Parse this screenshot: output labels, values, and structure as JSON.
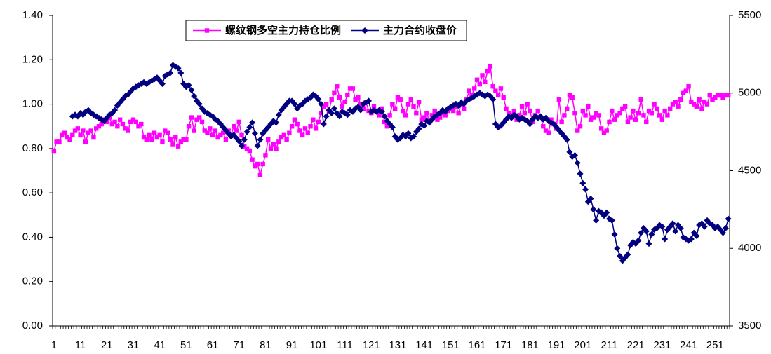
{
  "chart_data": {
    "type": "line",
    "categories": [
      "1",
      null,
      null,
      null,
      null,
      null,
      null,
      null,
      null,
      null,
      "11",
      null,
      null,
      null,
      null,
      null,
      null,
      null,
      null,
      null,
      "21",
      null,
      null,
      null,
      null,
      null,
      null,
      null,
      null,
      null,
      "31",
      null,
      null,
      null,
      null,
      null,
      null,
      null,
      null,
      null,
      "41",
      null,
      null,
      null,
      null,
      null,
      null,
      null,
      null,
      null,
      "51",
      null,
      null,
      null,
      null,
      null,
      null,
      null,
      null,
      null,
      "61",
      null,
      null,
      null,
      null,
      null,
      null,
      null,
      null,
      null,
      "71",
      null,
      null,
      null,
      null,
      null,
      null,
      null,
      null,
      null,
      "81",
      null,
      null,
      null,
      null,
      null,
      null,
      null,
      null,
      null,
      "91",
      null,
      null,
      null,
      null,
      null,
      null,
      null,
      null,
      null,
      "101",
      null,
      null,
      null,
      null,
      null,
      null,
      null,
      null,
      null,
      "111",
      null,
      null,
      null,
      null,
      null,
      null,
      null,
      null,
      null,
      "121",
      null,
      null,
      null,
      null,
      null,
      null,
      null,
      null,
      null,
      "131",
      null,
      null,
      null,
      null,
      null,
      null,
      null,
      null,
      null,
      "141",
      null,
      null,
      null,
      null,
      null,
      null,
      null,
      null,
      null,
      "151",
      null,
      null,
      null,
      null,
      null,
      null,
      null,
      null,
      null,
      "161",
      null,
      null,
      null,
      null,
      null,
      null,
      null,
      null,
      null,
      "171",
      null,
      null,
      null,
      null,
      null,
      null,
      null,
      null,
      null,
      "181",
      null,
      null,
      null,
      null,
      null,
      null,
      null,
      null,
      null,
      "191",
      null,
      null,
      null,
      null,
      null,
      null,
      null,
      null,
      null,
      "201",
      null,
      null,
      null,
      null,
      null,
      null,
      null,
      null,
      null,
      "211",
      null,
      null,
      null,
      null,
      null,
      null,
      null,
      null,
      null,
      "221",
      null,
      null,
      null,
      null,
      null,
      null,
      null,
      null,
      null,
      "231",
      null,
      null,
      null,
      null,
      null,
      null,
      null,
      null,
      null,
      "241",
      null,
      null,
      null,
      null,
      null,
      null,
      null,
      null,
      null,
      "251",
      null,
      null,
      null,
      null,
      null
    ],
    "series": [
      {
        "name": "螺纹钢多空主力持仓比例",
        "color": "#ff00ff",
        "marker": "square",
        "values": [
          0.79,
          0.83,
          0.83,
          0.86,
          0.87,
          0.85,
          0.84,
          0.86,
          0.88,
          0.89,
          0.86,
          0.88,
          0.83,
          0.87,
          0.88,
          0.85,
          0.89,
          0.9,
          0.91,
          0.93,
          0.92,
          0.94,
          0.91,
          0.92,
          0.9,
          0.93,
          0.91,
          0.89,
          0.88,
          0.92,
          0.93,
          0.92,
          0.9,
          0.91,
          0.85,
          0.84,
          0.86,
          0.84,
          0.87,
          0.85,
          0.86,
          0.83,
          0.88,
          0.87,
          0.84,
          0.82,
          0.85,
          0.81,
          0.83,
          0.84,
          0.84,
          0.9,
          0.94,
          0.88,
          0.93,
          0.94,
          0.92,
          0.88,
          0.87,
          0.89,
          0.86,
          0.88,
          0.85,
          0.86,
          0.87,
          0.84,
          0.88,
          0.86,
          0.9,
          0.88,
          0.92,
          0.86,
          0.81,
          0.8,
          0.79,
          0.75,
          0.72,
          0.73,
          0.68,
          0.73,
          0.77,
          0.84,
          0.8,
          0.82,
          0.8,
          0.83,
          0.85,
          0.86,
          0.84,
          0.87,
          0.9,
          0.93,
          0.91,
          0.88,
          0.86,
          0.89,
          0.87,
          0.9,
          0.93,
          0.89,
          0.92,
          0.96,
          0.99,
          1.0,
          0.97,
          1.02,
          1.05,
          1.08,
          1.03,
          0.99,
          1.01,
          1.04,
          1.07,
          1.07,
          1.02,
          1.03,
          1.0,
          0.98,
          1.01,
          0.97,
          0.96,
          0.99,
          0.97,
          0.95,
          0.98,
          0.92,
          0.9,
          0.95,
          1.0,
          0.98,
          1.03,
          1.02,
          0.97,
          0.95,
          1.0,
          1.02,
          0.99,
          0.96,
          1.01,
          0.93,
          0.94,
          0.96,
          0.92,
          0.95,
          0.97,
          0.93,
          0.94,
          0.96,
          0.95,
          0.97,
          0.98,
          0.97,
          0.99,
          0.96,
          1.0,
          0.98,
          1.02,
          1.06,
          1.04,
          1.07,
          1.11,
          1.09,
          1.13,
          1.1,
          1.15,
          1.17,
          1.08,
          1.06,
          1.04,
          1.07,
          1.03,
          0.98,
          0.96,
          0.95,
          0.97,
          0.93,
          0.95,
          0.99,
          0.96,
          1.0,
          0.97,
          0.92,
          0.95,
          0.97,
          0.94,
          0.9,
          0.88,
          0.87,
          0.93,
          0.91,
          0.89,
          1.02,
          0.92,
          0.95,
          0.98,
          1.04,
          1.03,
          0.96,
          0.88,
          0.9,
          0.97,
          0.95,
          0.99,
          0.93,
          0.94,
          0.96,
          0.95,
          0.89,
          0.87,
          0.88,
          0.92,
          0.97,
          0.93,
          0.95,
          0.96,
          0.98,
          0.99,
          0.92,
          0.94,
          0.97,
          0.93,
          0.96,
          1.02,
          0.95,
          0.92,
          0.97,
          0.96,
          1.0,
          0.98,
          0.95,
          0.93,
          0.97,
          0.95,
          0.98,
          1.0,
          1.01,
          0.99,
          1.02,
          1.05,
          1.06,
          1.08,
          1.01,
          1.0,
          0.99,
          1.02,
          0.98,
          1.01,
          1.0,
          1.04,
          1.02,
          1.03,
          1.04,
          1.04,
          1.03,
          1.04,
          1.04
        ]
      },
      {
        "name": "主力合约收盘价",
        "color": "#000080",
        "marker": "diamond",
        "axis": "y2",
        "values": [
          null,
          null,
          null,
          null,
          null,
          null,
          null,
          4850,
          4860,
          4850,
          4870,
          4860,
          4880,
          4890,
          4870,
          4860,
          4850,
          4840,
          4830,
          4820,
          4840,
          4860,
          4870,
          4890,
          4920,
          4940,
          4960,
          4980,
          4990,
          5010,
          5030,
          5040,
          5050,
          5060,
          5070,
          5060,
          5070,
          5080,
          5090,
          5100,
          5080,
          5060,
          5110,
          5120,
          5130,
          5180,
          5170,
          5160,
          5130,
          5060,
          5040,
          5050,
          5020,
          4980,
          4950,
          4930,
          4900,
          4880,
          4870,
          4860,
          4850,
          4830,
          4820,
          4800,
          4780,
          4760,
          4740,
          4720,
          4730,
          4710,
          4690,
          4660,
          4700,
          4750,
          4780,
          4810,
          4740,
          4660,
          4700,
          4740,
          4760,
          4780,
          4800,
          4820,
          4810,
          4860,
          4890,
          4910,
          4930,
          4950,
          4950,
          4930,
          4900,
          4920,
          4930,
          4950,
          4960,
          4970,
          4990,
          4980,
          4960,
          4930,
          4800,
          4850,
          4890,
          4870,
          4900,
          4870,
          4850,
          4880,
          4870,
          4860,
          4890,
          4880,
          4900,
          4910,
          4890,
          4930,
          4940,
          4950,
          4880,
          4890,
          4880,
          4890,
          4880,
          4850,
          4820,
          4800,
          4780,
          4720,
          4700,
          4710,
          4730,
          4720,
          4740,
          4710,
          4720,
          4750,
          4770,
          4800,
          4790,
          4820,
          4810,
          4830,
          4850,
          4860,
          4870,
          4890,
          4880,
          4900,
          4910,
          4920,
          4930,
          4920,
          4940,
          4930,
          4950,
          4960,
          4970,
          4980,
          4990,
          5000,
          4990,
          4980,
          4990,
          4980,
          4960,
          4800,
          4780,
          4790,
          4810,
          4830,
          4850,
          4840,
          4860,
          4850,
          4830,
          4840,
          4830,
          4820,
          4800,
          4830,
          4850,
          4840,
          4850,
          4830,
          4840,
          4820,
          4810,
          4800,
          4780,
          4760,
          4740,
          4720,
          4700,
          4620,
          4590,
          4600,
          4550,
          4480,
          4420,
          4380,
          4300,
          4320,
          4250,
          4180,
          4240,
          4230,
          4210,
          4230,
          4190,
          4180,
          4090,
          4000,
          3950,
          3920,
          3940,
          3960,
          4020,
          4040,
          4030,
          4050,
          4100,
          4130,
          4110,
          4030,
          4090,
          4120,
          4130,
          4150,
          4140,
          4060,
          4120,
          4140,
          4160,
          4110,
          4150,
          4130,
          4070,
          4060,
          4050,
          4060,
          4100,
          4080,
          4150,
          4160,
          4140,
          4180,
          4160,
          4150,
          4130,
          4140,
          4120,
          4100,
          4130,
          4190
        ]
      }
    ],
    "ylim": [
      0,
      1.4
    ],
    "yticks": [
      {
        "value": 0,
        "label": "0.00"
      },
      {
        "value": 0.2,
        "label": "0.20"
      },
      {
        "value": 0.4,
        "label": "0.40"
      },
      {
        "value": 0.6,
        "label": "0.60"
      },
      {
        "value": 0.8,
        "label": "0.80"
      },
      {
        "value": 1.0,
        "label": "1.00"
      },
      {
        "value": 1.2,
        "label": "1.20"
      },
      {
        "value": 1.4,
        "label": "1.40"
      }
    ],
    "y2lim": [
      3500,
      5500
    ],
    "y2ticks": [
      3500,
      4000,
      4500,
      5000,
      5500
    ],
    "legend": "top",
    "grid": false
  }
}
